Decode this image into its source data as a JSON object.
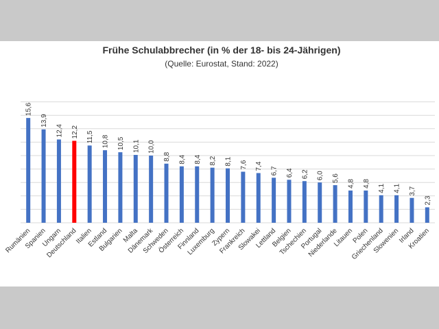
{
  "colors": {
    "bar": "#4472c4",
    "highlight": "#ff0000",
    "grid": "#d9d9d9"
  },
  "chart_data": {
    "type": "bar",
    "title": "Frühe Schulabbrecher (in % der 18- bis 24-Jährigen)",
    "subtitle": "(Quelle: Eurostat, Stand: 2022)",
    "categories": [
      "Rumänien",
      "Spanien",
      "Ungarn",
      "Deutschland",
      "Italien",
      "Estland",
      "Bulgarien",
      "Malta",
      "Dänemark",
      "Schweden",
      "Österreich",
      "Finnland",
      "Luxemburg",
      "Zypern",
      "Frankreich",
      "Slowakei",
      "Lettland",
      "Belgien",
      "Tschechien",
      "Portugal",
      "Niederlande",
      "Litauen",
      "Polen",
      "Griechenland",
      "Slowenien",
      "Irland",
      "Kroatien"
    ],
    "values": [
      15.6,
      13.9,
      12.4,
      12.2,
      11.5,
      10.8,
      10.5,
      10.1,
      10.0,
      8.8,
      8.4,
      8.4,
      8.2,
      8.1,
      7.6,
      7.4,
      6.7,
      6.4,
      6.2,
      6.0,
      5.6,
      4.8,
      4.8,
      4.1,
      4.1,
      3.7,
      2.3
    ],
    "value_labels": [
      "15,6",
      "13,9",
      "12,4",
      "12,2",
      "11,5",
      "10,8",
      "10,5",
      "10,1",
      "10,0",
      "8,8",
      "8,4",
      "8,4",
      "8,2",
      "8,1",
      "7,6",
      "7,4",
      "6,7",
      "6,4",
      "6,2",
      "6,0",
      "5,6",
      "4,8",
      "4,8",
      "4,1",
      "4,1",
      "3,7",
      "2,3"
    ],
    "highlight_category": "Deutschland",
    "ylim": [
      0,
      18
    ],
    "grid": true,
    "legend": "none"
  }
}
